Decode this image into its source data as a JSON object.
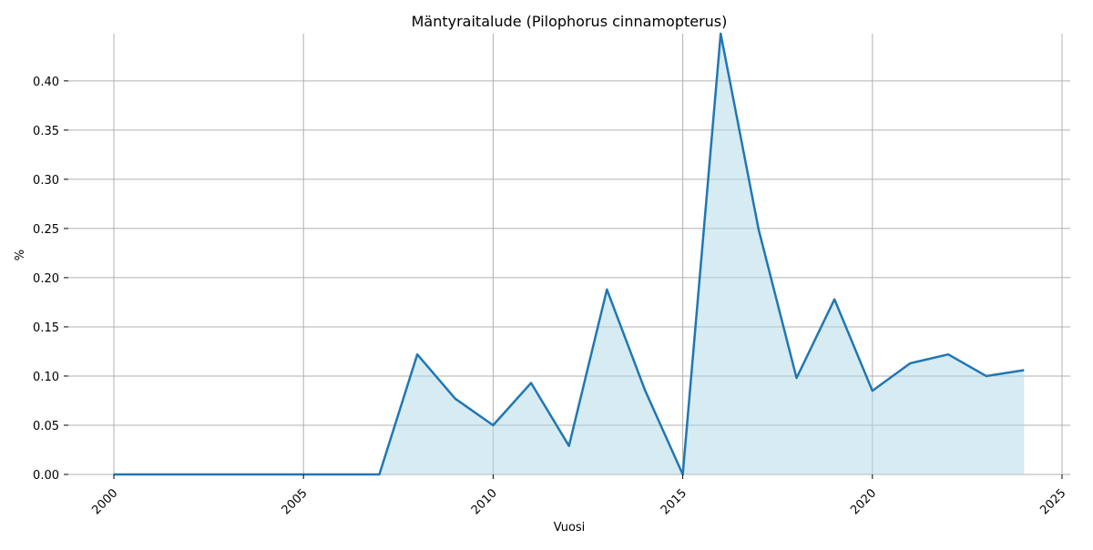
{
  "chart_data": {
    "type": "area",
    "title": "Mäntyraitalude (Pilophorus cinnamopterus)",
    "xlabel": "Vuosi",
    "ylabel": "%",
    "xlim": [
      1998.8,
      2025.2
    ],
    "ylim": [
      0,
      0.448
    ],
    "x_ticks": [
      2000,
      2005,
      2010,
      2015,
      2020,
      2025
    ],
    "y_ticks": [
      0.0,
      0.05,
      0.1,
      0.15,
      0.2,
      0.25,
      0.3,
      0.35,
      0.4
    ],
    "grid": true,
    "line_color": "#1f77b4",
    "fill_color": "#add8e6",
    "x": [
      2000,
      2001,
      2002,
      2003,
      2004,
      2005,
      2006,
      2007,
      2008,
      2009,
      2010,
      2011,
      2012,
      2013,
      2014,
      2015,
      2016,
      2017,
      2018,
      2019,
      2020,
      2021,
      2022,
      2023,
      2024
    ],
    "values": [
      0,
      0,
      0,
      0,
      0,
      0,
      0,
      0,
      0.122,
      0.077,
      0.05,
      0.093,
      0.029,
      0.188,
      0.086,
      0,
      0.448,
      0.249,
      0.098,
      0.178,
      0.085,
      0.113,
      0.122,
      0.1,
      0.106
    ]
  }
}
